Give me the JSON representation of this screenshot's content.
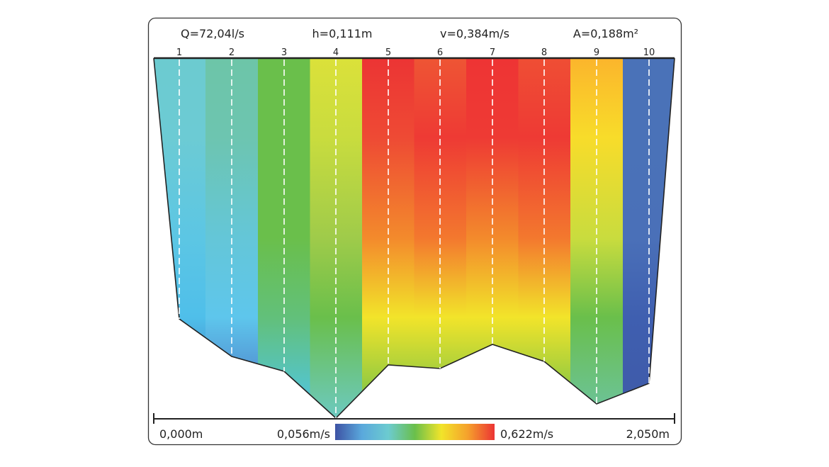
{
  "header": {
    "discharge": "Q=72,04l/s",
    "depth": "h=0,111m",
    "mean_velocity": "v=0,384m/s",
    "area": "A=0,188m²"
  },
  "verticals": [
    "1",
    "2",
    "3",
    "4",
    "5",
    "6",
    "7",
    "8",
    "9",
    "10"
  ],
  "columns": [
    {
      "colors": [
        "#6ccbd0",
        "#6ccbd4",
        "#5cc6e4",
        "#4fbfea",
        "#3f5fb0"
      ]
    },
    {
      "colors": [
        "#6dc5a8",
        "#6dc5b0",
        "#64c6d8",
        "#5ec6ec",
        "#4a6cc0"
      ]
    },
    {
      "colors": [
        "#6abf4b",
        "#6abf4b",
        "#6abf4b",
        "#62c07a",
        "#4fc6ec"
      ]
    },
    {
      "colors": [
        "#dbe13a",
        "#c9dc3e",
        "#9fcb4a",
        "#6abf4b",
        "#6cc9c0"
      ]
    },
    {
      "colors": [
        "#ec3434",
        "#ee4a34",
        "#f38a2c",
        "#f2e42a",
        "#6abf4b"
      ]
    },
    {
      "colors": [
        "#ee5534",
        "#ee3a34",
        "#f3782e",
        "#f2e42a",
        "#6abf4b"
      ]
    },
    {
      "colors": [
        "#ee3434",
        "#ee3a34",
        "#f38a2c",
        "#f2e42a",
        "#6abf4b"
      ]
    },
    {
      "colors": [
        "#ef4e34",
        "#ee3a34",
        "#f3782e",
        "#f2e42a",
        "#6abf4b"
      ]
    },
    {
      "colors": [
        "#fbb52c",
        "#f8dc2a",
        "#c9dc3e",
        "#6abf4b",
        "#6cc3a0"
      ]
    },
    {
      "colors": [
        "#4a72b8",
        "#4a72b8",
        "#4a70b8",
        "#3f5fb0",
        "#3f5aa8"
      ]
    }
  ],
  "axis": {
    "left_label": "0,000m",
    "right_label": "2,050m"
  },
  "legend": {
    "min_label": "0,056m/s",
    "max_label": "0,622m/s",
    "colors": [
      "#3d52a4",
      "#5aa8dc",
      "#6ccbd0",
      "#6abf4b",
      "#f2e42a",
      "#f5a02c",
      "#ec3434"
    ]
  }
}
